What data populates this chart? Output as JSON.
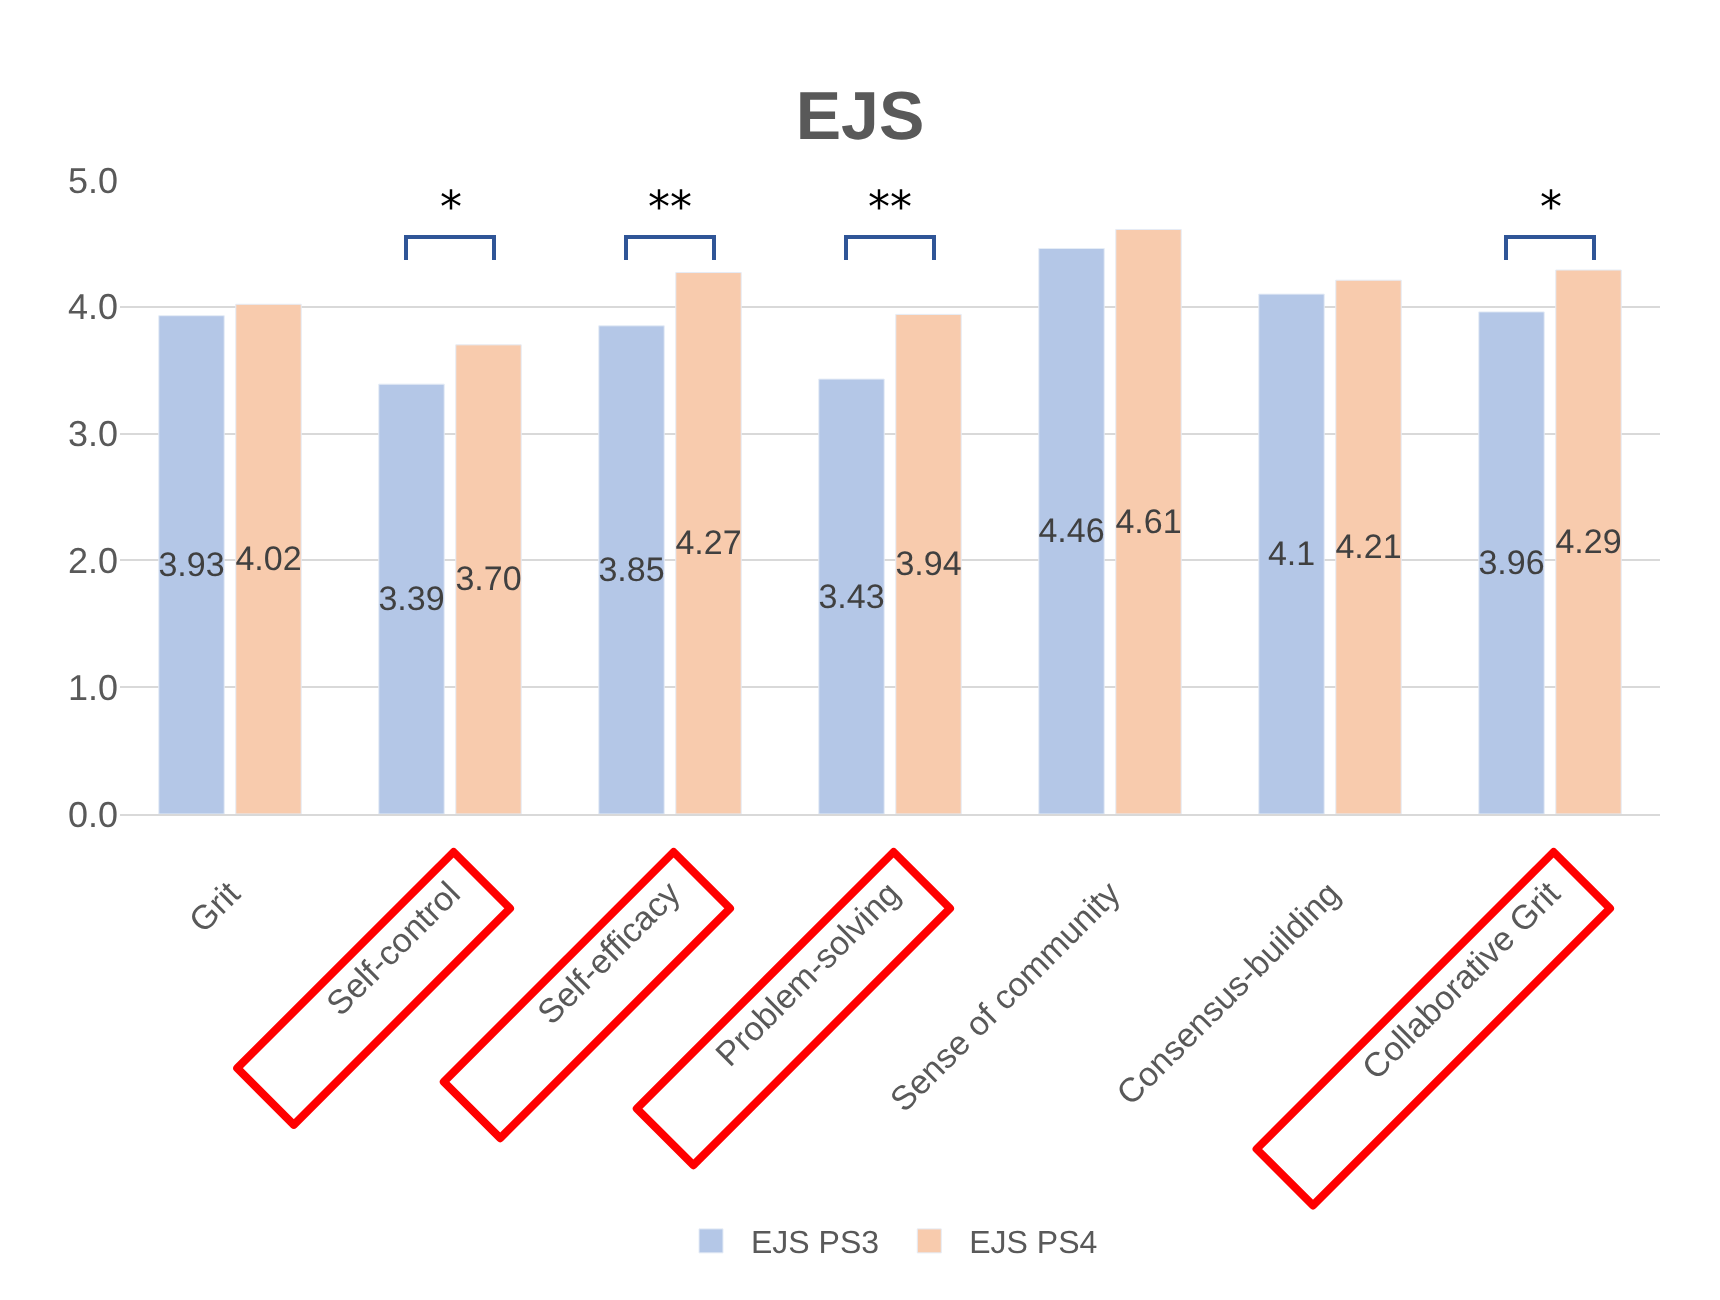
{
  "chart_data": {
    "type": "bar",
    "title": "EJS",
    "categories": [
      "Grit",
      "Self-control",
      "Self-efficacy",
      "Problem-solving",
      "Sense of community",
      "Consensus-building",
      "Collaborative Grit"
    ],
    "series": [
      {
        "name": "EJS PS3",
        "color": "#b4c7e7",
        "values": [
          3.93,
          3.39,
          3.85,
          3.43,
          4.46,
          4.1,
          3.96
        ],
        "value_labels": [
          "3.93",
          "3.39",
          "3.85",
          "3.43",
          "4.46",
          "4.1",
          "3.96"
        ]
      },
      {
        "name": "EJS PS4",
        "color": "#f8cbad",
        "values": [
          4.02,
          3.7,
          4.27,
          3.94,
          4.61,
          4.21,
          4.29
        ],
        "value_labels": [
          "4.02",
          "3.70",
          "4.27",
          "3.94",
          "4.61",
          "4.21",
          "4.29"
        ]
      }
    ],
    "ylim": [
      0,
      5
    ],
    "yticks": [
      {
        "value": 0,
        "label": "0.0"
      },
      {
        "value": 1,
        "label": "1.0"
      },
      {
        "value": 2,
        "label": "2.0"
      },
      {
        "value": 3,
        "label": "3.0"
      },
      {
        "value": 4,
        "label": "4.0"
      },
      {
        "value": 5,
        "label": "5.0"
      }
    ],
    "grid": "y",
    "legend": "bottom",
    "annotations": [
      "*",
      "**",
      "**",
      "*"
    ]
  }
}
